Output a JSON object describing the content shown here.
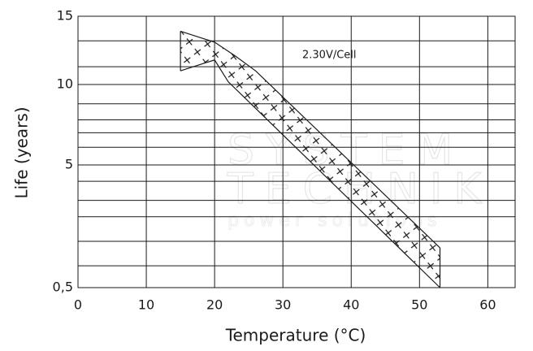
{
  "chart_data": {
    "type": "area-band",
    "xlabel": "Temperature (°C)",
    "ylabel": "Life (years)",
    "annotation": "2.30V/Cell",
    "watermark": [
      "SYSTEM",
      "TECHNIK",
      "power solutions"
    ],
    "xlim": [
      0,
      64
    ],
    "xticks": [
      0,
      10,
      20,
      30,
      40,
      50,
      60
    ],
    "ylim": [
      0.5,
      15
    ],
    "yticks": [
      {
        "value": 0.5,
        "label": "0,5"
      },
      5,
      10,
      15
    ],
    "minor_yticks": [
      13.2,
      11.3,
      8.8,
      7.8,
      7.0,
      6.1,
      4.4,
      3.7,
      3.1,
      2.2,
      1.3
    ],
    "grid": true,
    "series": [
      {
        "name": "upper",
        "color": "#1a1a1a",
        "x": [
          15,
          20,
          23,
          26,
          53
        ],
        "values": [
          13.9,
          13.1,
          12.1,
          11.0,
          1.96
        ]
      },
      {
        "name": "lower",
        "color": "#1a1a1a",
        "x": [
          15,
          20,
          22,
          53
        ],
        "values": [
          11.0,
          11.8,
          10.2,
          0.5
        ]
      }
    ]
  }
}
